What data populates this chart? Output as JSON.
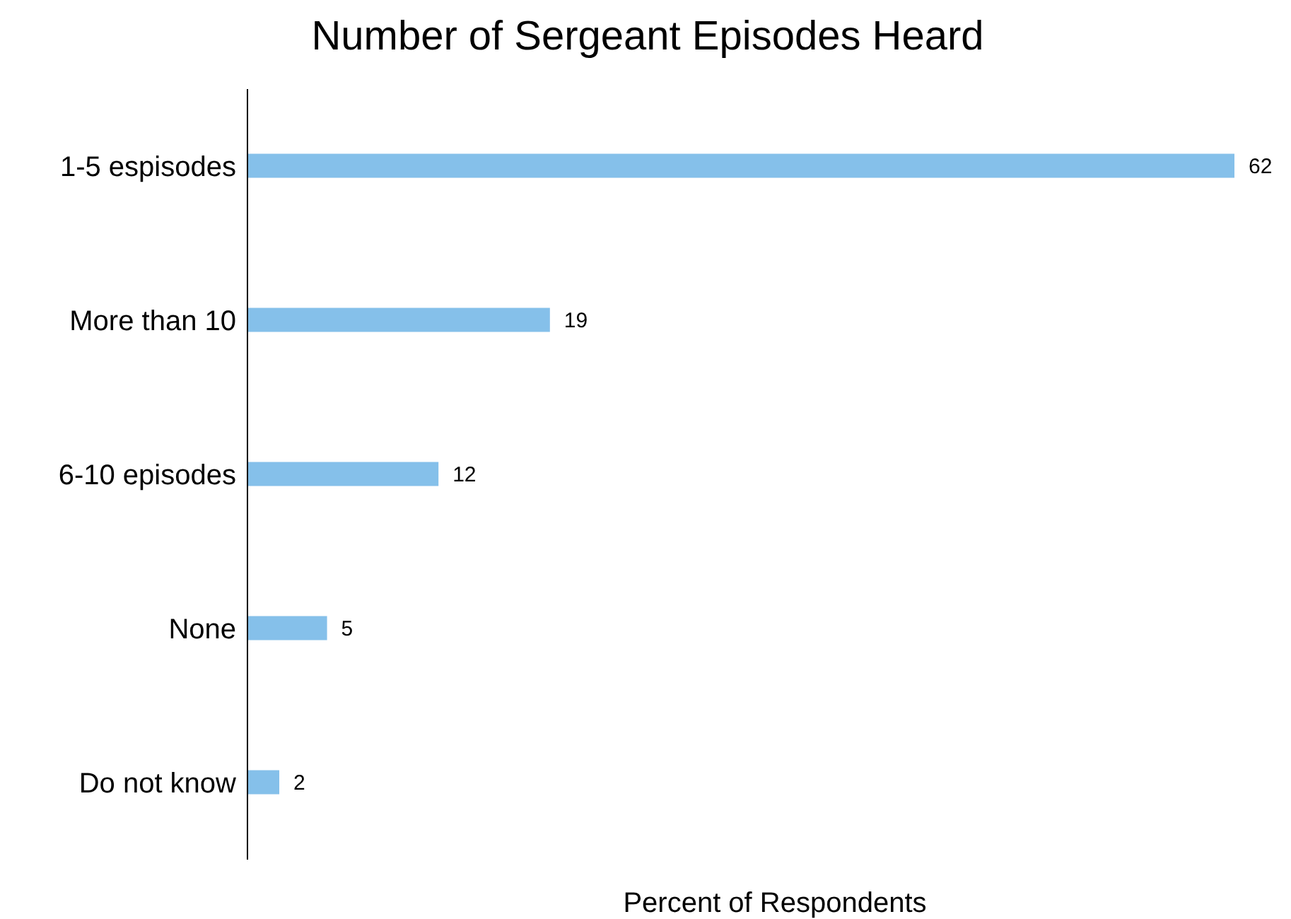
{
  "chart_data": {
    "type": "bar",
    "orientation": "horizontal",
    "title": "Number of Sergeant Episodes Heard",
    "xlabel": "Percent of Respondents",
    "categories": [
      "1-5 espisodes",
      "More than 10",
      "6-10 episodes",
      "None",
      "Do not know"
    ],
    "values": [
      62,
      19,
      12,
      5,
      2
    ],
    "color": "#85c0ea",
    "data_labels": true,
    "grid": false,
    "legend": false,
    "tick_labels": "y"
  }
}
